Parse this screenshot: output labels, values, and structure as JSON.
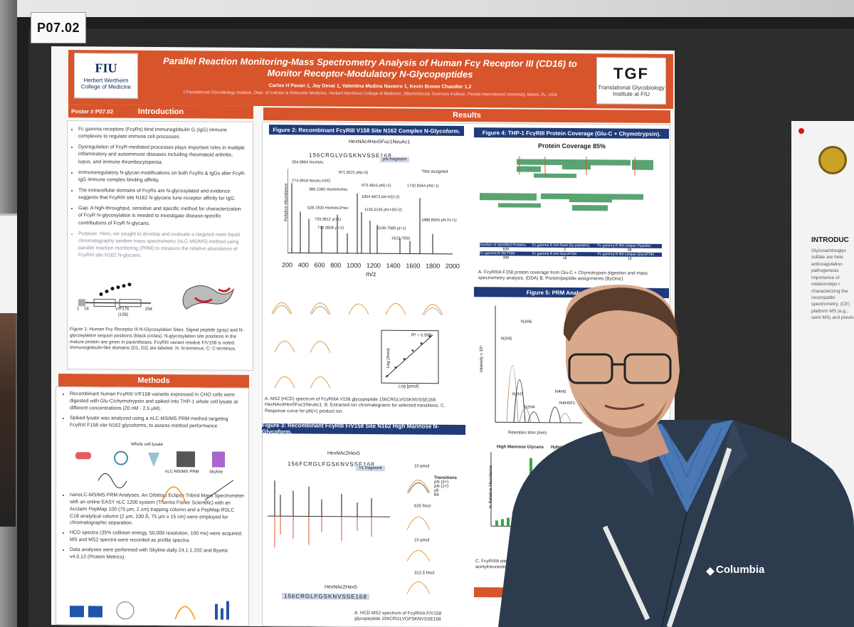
{
  "scene": {
    "tag": "P07.02"
  },
  "poster": {
    "title": "Parallel Reaction Monitoring-Mass Spectrometry Analysis of Human Fcγ Receptor III (CD16) to Monitor Receptor-Modulatory N-Glycopeptides",
    "authors": "Carlos H Pavan 1, Jay Desai 1, Valentina Medina Navarro 1, Kevin Brown Chandler 1,2",
    "affiliations": "1Translational Glycobiology Institute, Dept. of Cellular & Molecular Medicine, Herbert Wertheim College of Medicine, 2Biomolecular Sciences Institute, Florida International University, Miami, FL, USA",
    "fiu_logo": {
      "big": "FIU",
      "small": "Herbert Wertheim College of Medicine"
    },
    "tgf_logo": {
      "big": "TGF",
      "small": "Translational Glycobiology Institute at FIU"
    },
    "poster_number": "Poster # P07.02",
    "intro_header": "Introduction",
    "methods_header": "Methods",
    "results_header": "Results",
    "intro_bullets": [
      "Fc gamma receptors (FcγRs) bind immunoglobulin G (IgG) immune complexes to regulate immune cell processes.",
      "Dysregulation of FcγR-mediated processes plays important roles in multiple inflammatory and autoimmune diseases including rheumatoid arthritis, lupus, and immune thrombocytopenia.",
      "Immunoregulatory N-glycan modifications on both FcγRs & IgGs alter FcγR-IgG immune complex binding affinity.",
      "The extracellular domains of FcγRs are N-glycosylated and evidence suggests that FcγRIII site N162 N-glycans tune receptor affinity for IgG.",
      "Gap: A high-throughput, sensitive and specific method for characterization of FcγR N-glycosylation is needed to investigate disease-specific contributions of FcγR N-glycans.",
      "Purpose: Here, we sought to develop and evaluate a targeted nano-liquid chromatography tandem mass spectrometry (nLC-MS/MS) method using parallel reaction monitoring (PRM) to measure the relative abundance of FcγRIII site N162 N-glycans."
    ],
    "fig1_caption": "Figure 1: Human Fcγ Receptor III N-Glycosylation Sites. Signal peptide (gray) and N-glycosylation sequon positions (black circles). N-glycosylation site positions in the mature protein are given in parentheses. FcγRIII variant residue F/V158 is noted. Immunoglobulin-like domains (D1, D2) are labeled. N: N-terminus; C: C-terminus.",
    "fig1_labels": {
      "n1": "1",
      "n2": "18",
      "v": "V/F176",
      "v2": "(158)",
      "n3": "254"
    },
    "methods_bullets": [
      "Recombinant human FcγRIII V/F158 variants expressed in CHO cells were digested with Glu-C/chymotrypsin and spiked into THP-1 whole cell lysate at different concentrations (20 nM - 2.5 μM).",
      "Spiked lysate was analyzed using a nLC-MS/MS PRM method targeting FcγRIII F158 site N162 glycoforms, to assess method performance.",
      "nanoLC-MS/MS PRM Analyses. An Orbitrap Eclipse Tribrid Mass Spectrometer with an online EASY nLC 1200 system (Thermo Fisher Scientific) with an Acclaim PepMap 100 (75 μm, 2 cm) trapping column and a PepMap RSLC C18 analytical column (2 μm, 100 Å, 75 μm x 15 cm) were employed for chromatographic separation.",
      "HCD spectra (35% collision energy, 50,000 resolution, 100 ms) were acquired. MS and MS2 spectra were recorded as profile spectra.",
      "Data analyses were performed with Skyline-daily 24.1.1.202 and Byonic v4.0.12 (Protein Metrics)."
    ],
    "workflow_labels": {
      "a": "Whole cell lysate",
      "b": "nLC-MS/MS PRM",
      "c": "Skyline"
    },
    "fig2": {
      "title": "Figure 2: Recombinant FcγRIII V158 Site N162 Complex N-Glycoform.",
      "glycan": "HexNAc4Hex5Fuc1NeuAc1",
      "peptide": "156CRGLVGSKNVSSE168",
      "fragment": "pN fragment",
      "not_assigned": "*Not assigned",
      "ylabel": "Relative Abundance",
      "xlabel": "m/z",
      "ticks": [
        "200",
        "400",
        "600",
        "800",
        "1000",
        "1200",
        "1400",
        "1600",
        "1800",
        "2000"
      ],
      "peaks": [
        "204.0864 HexNAc",
        "274.0918 NeuAc-H2O",
        "386.1383 HexNAcHex",
        "871.9221 pN(+2)",
        "973.4815 pN(+2)",
        "1054.4873 pN-H2(+2)",
        "1135.5134 pN-H2(+2)",
        "1742.8344 pN(+1)",
        "528.1920 HexNAc2Hex",
        "733.3812 y(+1)",
        "770.3828 y(+2)",
        "1539.7580 p(+1)",
        "1622.7933",
        "1888.8925 pN-F(+1)"
      ],
      "caption": "A. MS2 (HCD) spectrum of FcγRIIIA V158 glycopeptide 156CRGLVGSKNVSSE168 HexNAc4Hex5Fuc1NeuAc1. B. Extracted ion chromatograms for selected transitions. C. Response curve for pN(+) product ion.",
      "r2": "R² = 0.999",
      "curve_x": "Log [pmol]",
      "curve_y": "Log (Area)"
    },
    "fig3": {
      "title": "Figure 3: Recombinant FcγRIII F/V158 Site N162 High Mannose N-Glycoform.",
      "glycan": "HexNAc2Hex5",
      "peptide": "156FCRGLFGSKNVSSE168",
      "fragment": "Y1 fragment",
      "glycan2": "HexNAc2Hex5",
      "peptide2": "156CRGLFGSKNVSSE168",
      "amounts": [
        "10 pmol",
        "625 fmol",
        "10 pmol",
        "312.5 fmol"
      ],
      "legend": [
        "pN (2+)",
        "pN (1+)",
        "y8",
        "b6"
      ],
      "transitions": "Transitions",
      "caption": "A. HCD MS2 spectrum of FcγRIIIA F/V158 glycopeptide 156CRGLVGFSKNVSSE168"
    },
    "fig4": {
      "title": "Figure 4: THP-1 FcγRIII Protein Coverage (Glu-C + Chymotrypsin).",
      "coverage": "Protein Coverage 85%",
      "table_head": [
        "Number of Identified Proteins",
        "Fc gamma R IIIA Rank (by peptides)",
        "Fc gamma R IIIA Unique Peptides"
      ],
      "table_row1": [
        "626",
        "2",
        "88"
      ],
      "table_head2": [
        "Fc gamma R IIIA PSM",
        "Fc gamma R IIIA GlycoPSM",
        "Fc gamma R IIIA Unique GlycoPSM"
      ],
      "table_row2": [
        "269",
        "18",
        "10"
      ],
      "caption": "A. FcγRIIIA F158 protein coverage from Glu-C + Chymotrypsin digestion and mass spectrometry analysis. (DDA) B. Protein/peptide assignments (ByOnic)."
    },
    "fig5": {
      "title": "Figure 5: PRM Analysis of FcγRIII",
      "ylabel": "Intensity x 10⁶",
      "xlabel": "Retention time (min)",
      "peaks": [
        "N2H6",
        "N2H5",
        "N2H7",
        "N2H4",
        "N4H5",
        "N4H5F1"
      ],
      "bar_ylabel": "% Relative Abundance",
      "bar_head_left": "High Mannose Glycans",
      "bar_head_right": "Hybrid/Comp",
      "cap_partial": "C. FcγRIIIA site acetylhexosamine acetylneuramin"
    }
  },
  "right_poster": {
    "title": "INTRODUC",
    "text": "Glycosaminoglyc sulfate are hete anticoagulation pathogenesis importance of relationships r characterizing the incompatibl spectrometry. (CE) platform MS (e.g., semi MS) and previo"
  },
  "person": {
    "brand": "Columbia"
  }
}
